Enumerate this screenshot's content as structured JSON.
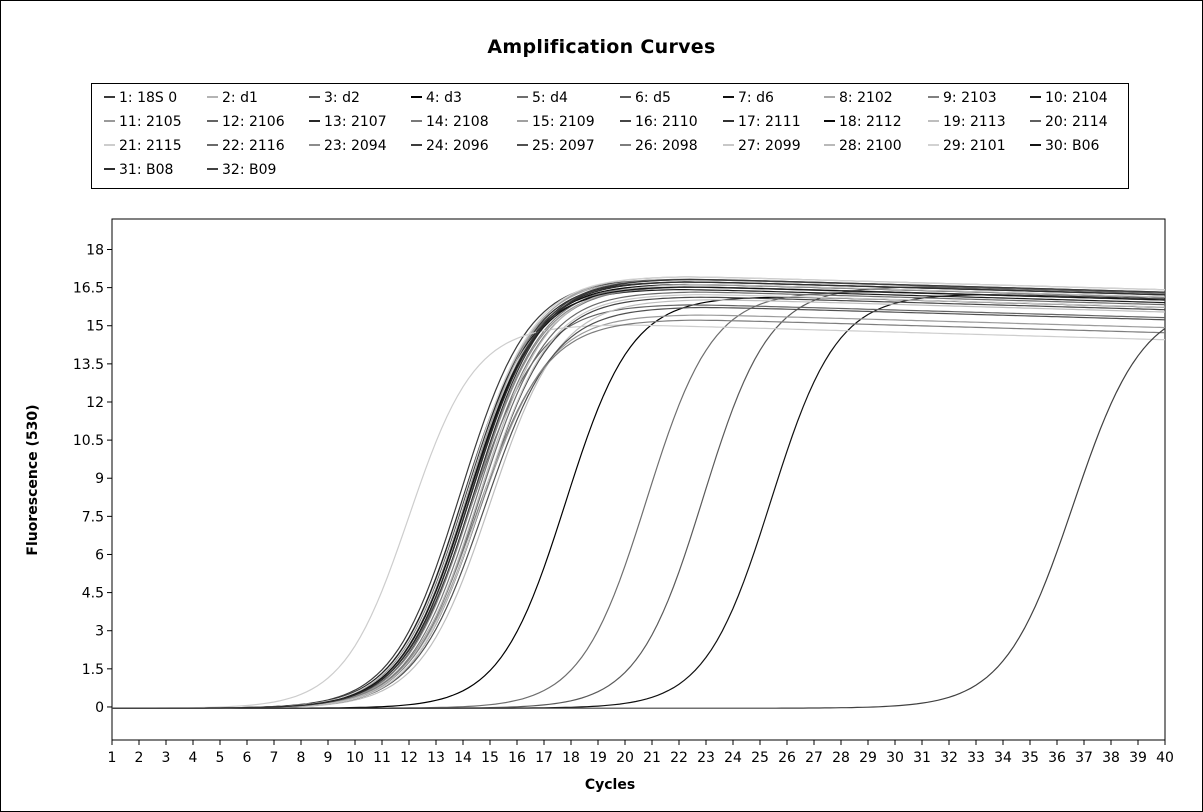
{
  "chart_data": {
    "type": "line",
    "title": "Amplification Curves",
    "xlabel": "Cycles",
    "ylabel": "Fluorescence (530)",
    "xlim": [
      1,
      40
    ],
    "ylim": [
      -1.3,
      19.2
    ],
    "xticks": [
      "1",
      "2",
      "3",
      "4",
      "5",
      "6",
      "7",
      "8",
      "9",
      "10",
      "11",
      "12",
      "13",
      "14",
      "15",
      "16",
      "17",
      "18",
      "19",
      "20",
      "21",
      "22",
      "23",
      "24",
      "25",
      "26",
      "27",
      "28",
      "29",
      "30",
      "31",
      "32",
      "33",
      "34",
      "35",
      "36",
      "37",
      "38",
      "39",
      "40"
    ],
    "yticks": [
      "0",
      "1.5",
      "3",
      "4.5",
      "6",
      "7.5",
      "9",
      "10.5",
      "12",
      "13.5",
      "15",
      "16.5",
      "18"
    ],
    "grid": false,
    "legend_position": "top",
    "series": [
      {
        "name": "1: 18S 0",
        "color": "#3a3a3a",
        "ct": 13.9,
        "plateau": 16.9,
        "k": 0.8
      },
      {
        "name": "2: d1",
        "color": "#b4b4b4",
        "ct": 14.2,
        "plateau": 16.8,
        "k": 0.8
      },
      {
        "name": "3: d2",
        "color": "#555555",
        "ct": 14.0,
        "plateau": 16.6,
        "k": 0.8
      },
      {
        "name": "4: d3",
        "color": "#000000",
        "ct": 17.8,
        "plateau": 16.2,
        "k": 0.82
      },
      {
        "name": "5: d4",
        "color": "#6e6e6e",
        "ct": 20.8,
        "plateau": 16.4,
        "k": 0.82
      },
      {
        "name": "6: d5",
        "color": "#5a5a5a",
        "ct": 22.9,
        "plateau": 16.6,
        "k": 0.82
      },
      {
        "name": "7: d6",
        "color": "#111111",
        "ct": 25.4,
        "plateau": 16.3,
        "k": 0.82
      },
      {
        "name": "8: 2102",
        "color": "#a8a8a8",
        "ct": 14.1,
        "plateau": 16.9,
        "k": 0.8
      },
      {
        "name": "9: 2103",
        "color": "#808080",
        "ct": 14.4,
        "plateau": 16.7,
        "k": 0.8
      },
      {
        "name": "10: 2104",
        "color": "#1e1e1e",
        "ct": 14.0,
        "plateau": 16.5,
        "k": 0.8
      },
      {
        "name": "11: 2105",
        "color": "#9a9a9a",
        "ct": 14.6,
        "plateau": 15.5,
        "k": 0.78
      },
      {
        "name": "12: 2106",
        "color": "#646464",
        "ct": 14.3,
        "plateau": 15.9,
        "k": 0.78
      },
      {
        "name": "13: 2107",
        "color": "#282828",
        "ct": 14.1,
        "plateau": 16.8,
        "k": 0.8
      },
      {
        "name": "14: 2108",
        "color": "#787878",
        "ct": 14.5,
        "plateau": 16.6,
        "k": 0.8
      },
      {
        "name": "15: 2109",
        "color": "#a0a0a0",
        "ct": 14.2,
        "plateau": 17.0,
        "k": 0.8
      },
      {
        "name": "16: 2110",
        "color": "#464646",
        "ct": 14.7,
        "plateau": 16.2,
        "k": 0.8
      },
      {
        "name": "17: 2111",
        "color": "#323232",
        "ct": 14.4,
        "plateau": 16.9,
        "k": 0.8
      },
      {
        "name": "18: 2112",
        "color": "#0a0a0a",
        "ct": 14.2,
        "plateau": 16.7,
        "k": 0.8
      },
      {
        "name": "19: 2113",
        "color": "#bebebe",
        "ct": 15.0,
        "plateau": 16.1,
        "k": 0.78
      },
      {
        "name": "20: 2114",
        "color": "#5f5f5f",
        "ct": 14.3,
        "plateau": 16.8,
        "k": 0.8
      },
      {
        "name": "21: 2115",
        "color": "#cdcdcd",
        "ct": 12.0,
        "plateau": 15.1,
        "k": 0.82
      },
      {
        "name": "22: 2116",
        "color": "#6a6a6a",
        "ct": 14.6,
        "plateau": 16.4,
        "k": 0.8
      },
      {
        "name": "23: 2094",
        "color": "#8c8c8c",
        "ct": 14.4,
        "plateau": 16.6,
        "k": 0.8
      },
      {
        "name": "24: 2096",
        "color": "#3c3c3c",
        "ct": 14.3,
        "plateau": 16.9,
        "k": 0.8
      },
      {
        "name": "25: 2097",
        "color": "#505050",
        "ct": 14.8,
        "plateau": 15.8,
        "k": 0.78
      },
      {
        "name": "26: 2098",
        "color": "#7d7d7d",
        "ct": 14.5,
        "plateau": 15.3,
        "k": 0.78
      },
      {
        "name": "27: 2099",
        "color": "#c8c8c8",
        "ct": 14.7,
        "plateau": 16.3,
        "k": 0.8
      },
      {
        "name": "28: 2100",
        "color": "#b9b9b9",
        "ct": 14.6,
        "plateau": 16.7,
        "k": 0.8
      },
      {
        "name": "29: 2101",
        "color": "#d2d2d2",
        "ct": 14.1,
        "plateau": 17.0,
        "k": 0.8
      },
      {
        "name": "30: B06",
        "color": "#141414",
        "ct": 14.2,
        "plateau": 16.6,
        "k": 0.8
      },
      {
        "name": "31: B08",
        "color": "#2d2d2d",
        "ct": 14.3,
        "plateau": 16.8,
        "k": 0.8
      },
      {
        "name": "32: B09",
        "color": "#414141",
        "ct": 36.6,
        "plateau": 16.0,
        "k": 0.78
      }
    ]
  }
}
